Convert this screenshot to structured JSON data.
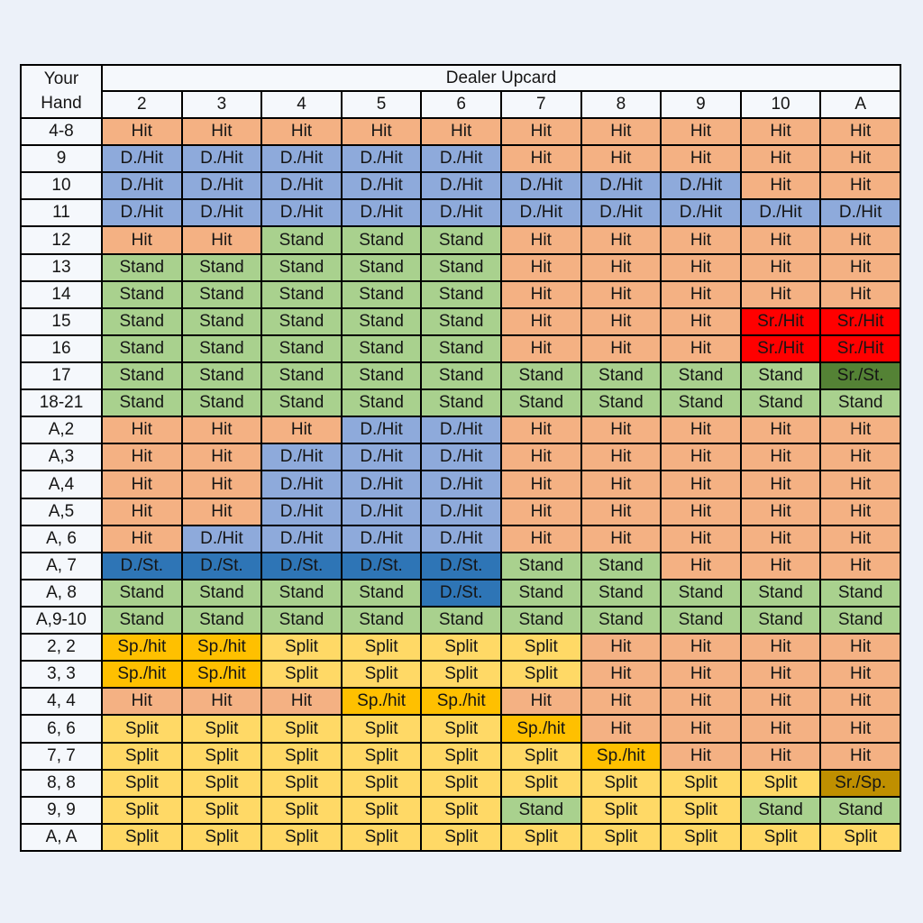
{
  "page": {
    "background": "#ECF1F9",
    "header_fill": "#F5F8FC"
  },
  "chart_data": {
    "type": "table",
    "corner_header_line1": "Your",
    "corner_header_line2": "Hand",
    "column_group_header": "Dealer Upcard",
    "columns": [
      "2",
      "3",
      "4",
      "5",
      "6",
      "7",
      "8",
      "9",
      "10",
      "A"
    ],
    "action_colors": {
      "Hit": "#F4B183",
      "D./Hit": "#8EAADB",
      "Stand": "#A9D18E",
      "Sr./Hit": "#FF0000",
      "Sr./St.": "#548235",
      "D./St.": "#2E75B6",
      "Split": "#FFD966",
      "Sp./hit": "#FFC000",
      "Sr./Sp.": "#BF8F00"
    },
    "rows": [
      {
        "label": "4-8",
        "cells": [
          "Hit",
          "Hit",
          "Hit",
          "Hit",
          "Hit",
          "Hit",
          "Hit",
          "Hit",
          "Hit",
          "Hit"
        ]
      },
      {
        "label": "9",
        "cells": [
          "D./Hit",
          "D./Hit",
          "D./Hit",
          "D./Hit",
          "D./Hit",
          "Hit",
          "Hit",
          "Hit",
          "Hit",
          "Hit"
        ]
      },
      {
        "label": "10",
        "cells": [
          "D./Hit",
          "D./Hit",
          "D./Hit",
          "D./Hit",
          "D./Hit",
          "D./Hit",
          "D./Hit",
          "D./Hit",
          "Hit",
          "Hit"
        ]
      },
      {
        "label": "11",
        "cells": [
          "D./Hit",
          "D./Hit",
          "D./Hit",
          "D./Hit",
          "D./Hit",
          "D./Hit",
          "D./Hit",
          "D./Hit",
          "D./Hit",
          "D./Hit"
        ]
      },
      {
        "label": "12",
        "cells": [
          "Hit",
          "Hit",
          "Stand",
          "Stand",
          "Stand",
          "Hit",
          "Hit",
          "Hit",
          "Hit",
          "Hit"
        ]
      },
      {
        "label": "13",
        "cells": [
          "Stand",
          "Stand",
          "Stand",
          "Stand",
          "Stand",
          "Hit",
          "Hit",
          "Hit",
          "Hit",
          "Hit"
        ]
      },
      {
        "label": "14",
        "cells": [
          "Stand",
          "Stand",
          "Stand",
          "Stand",
          "Stand",
          "Hit",
          "Hit",
          "Hit",
          "Hit",
          "Hit"
        ]
      },
      {
        "label": "15",
        "cells": [
          "Stand",
          "Stand",
          "Stand",
          "Stand",
          "Stand",
          "Hit",
          "Hit",
          "Hit",
          "Sr./Hit",
          "Sr./Hit"
        ]
      },
      {
        "label": "16",
        "cells": [
          "Stand",
          "Stand",
          "Stand",
          "Stand",
          "Stand",
          "Hit",
          "Hit",
          "Hit",
          "Sr./Hit",
          "Sr./Hit"
        ]
      },
      {
        "label": "17",
        "cells": [
          "Stand",
          "Stand",
          "Stand",
          "Stand",
          "Stand",
          "Stand",
          "Stand",
          "Stand",
          "Stand",
          "Sr./St."
        ]
      },
      {
        "label": "18-21",
        "cells": [
          "Stand",
          "Stand",
          "Stand",
          "Stand",
          "Stand",
          "Stand",
          "Stand",
          "Stand",
          "Stand",
          "Stand"
        ]
      },
      {
        "label": "A,2",
        "cells": [
          "Hit",
          "Hit",
          "Hit",
          "D./Hit",
          "D./Hit",
          "Hit",
          "Hit",
          "Hit",
          "Hit",
          "Hit"
        ]
      },
      {
        "label": "A,3",
        "cells": [
          "Hit",
          "Hit",
          "D./Hit",
          "D./Hit",
          "D./Hit",
          "Hit",
          "Hit",
          "Hit",
          "Hit",
          "Hit"
        ]
      },
      {
        "label": "A,4",
        "cells": [
          "Hit",
          "Hit",
          "D./Hit",
          "D./Hit",
          "D./Hit",
          "Hit",
          "Hit",
          "Hit",
          "Hit",
          "Hit"
        ]
      },
      {
        "label": "A,5",
        "cells": [
          "Hit",
          "Hit",
          "D./Hit",
          "D./Hit",
          "D./Hit",
          "Hit",
          "Hit",
          "Hit",
          "Hit",
          "Hit"
        ]
      },
      {
        "label": "A, 6",
        "cells": [
          "Hit",
          "D./Hit",
          "D./Hit",
          "D./Hit",
          "D./Hit",
          "Hit",
          "Hit",
          "Hit",
          "Hit",
          "Hit"
        ]
      },
      {
        "label": "A, 7",
        "cells": [
          "D./St.",
          "D./St.",
          "D./St.",
          "D./St.",
          "D./St.",
          "Stand",
          "Stand",
          "Hit",
          "Hit",
          "Hit"
        ]
      },
      {
        "label": "A, 8",
        "cells": [
          "Stand",
          "Stand",
          "Stand",
          "Stand",
          "D./St.",
          "Stand",
          "Stand",
          "Stand",
          "Stand",
          "Stand"
        ]
      },
      {
        "label": "A,9-10",
        "cells": [
          "Stand",
          "Stand",
          "Stand",
          "Stand",
          "Stand",
          "Stand",
          "Stand",
          "Stand",
          "Stand",
          "Stand"
        ]
      },
      {
        "label": "2, 2",
        "cells": [
          "Sp./hit",
          "Sp./hit",
          "Split",
          "Split",
          "Split",
          "Split",
          "Hit",
          "Hit",
          "Hit",
          "Hit"
        ]
      },
      {
        "label": "3, 3",
        "cells": [
          "Sp./hit",
          "Sp./hit",
          "Split",
          "Split",
          "Split",
          "Split",
          "Hit",
          "Hit",
          "Hit",
          "Hit"
        ]
      },
      {
        "label": "4, 4",
        "cells": [
          "Hit",
          "Hit",
          "Hit",
          "Sp./hit",
          "Sp./hit",
          "Hit",
          "Hit",
          "Hit",
          "Hit",
          "Hit"
        ]
      },
      {
        "label": "6, 6",
        "cells": [
          "Split",
          "Split",
          "Split",
          "Split",
          "Split",
          "Sp./hit",
          "Hit",
          "Hit",
          "Hit",
          "Hit"
        ]
      },
      {
        "label": "7, 7",
        "cells": [
          "Split",
          "Split",
          "Split",
          "Split",
          "Split",
          "Split",
          "Sp./hit",
          "Hit",
          "Hit",
          "Hit"
        ]
      },
      {
        "label": "8, 8",
        "cells": [
          "Split",
          "Split",
          "Split",
          "Split",
          "Split",
          "Split",
          "Split",
          "Split",
          "Split",
          "Sr./Sp."
        ]
      },
      {
        "label": "9, 9",
        "cells": [
          "Split",
          "Split",
          "Split",
          "Split",
          "Split",
          "Stand",
          "Split",
          "Split",
          "Stand",
          "Stand"
        ]
      },
      {
        "label": "A, A",
        "cells": [
          "Split",
          "Split",
          "Split",
          "Split",
          "Split",
          "Split",
          "Split",
          "Split",
          "Split",
          "Split"
        ]
      }
    ]
  }
}
